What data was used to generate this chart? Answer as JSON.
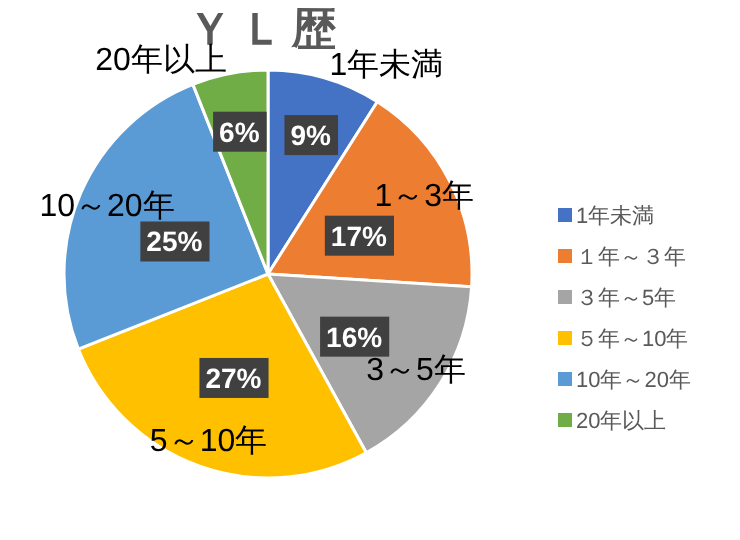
{
  "chart_data": {
    "type": "pie",
    "title": "ＹＬ歴",
    "categories": [
      "1年未満",
      "１年～３年",
      "３年～5年",
      "５年～10年",
      "10年～20年",
      "20年以上"
    ],
    "values": [
      9,
      17,
      16,
      27,
      25,
      6
    ],
    "value_labels": [
      "9%",
      "17%",
      "16%",
      "27%",
      "25%",
      "6%"
    ],
    "colors": [
      "#4472c4",
      "#ed7d31",
      "#a5a5a5",
      "#ffc000",
      "#5b9bd5",
      "#70ad47"
    ],
    "annotations": [
      "1年未満",
      "1～3年",
      "3～5年",
      "5～10年",
      "10～20年",
      "20年以上"
    ],
    "legend": "right"
  }
}
